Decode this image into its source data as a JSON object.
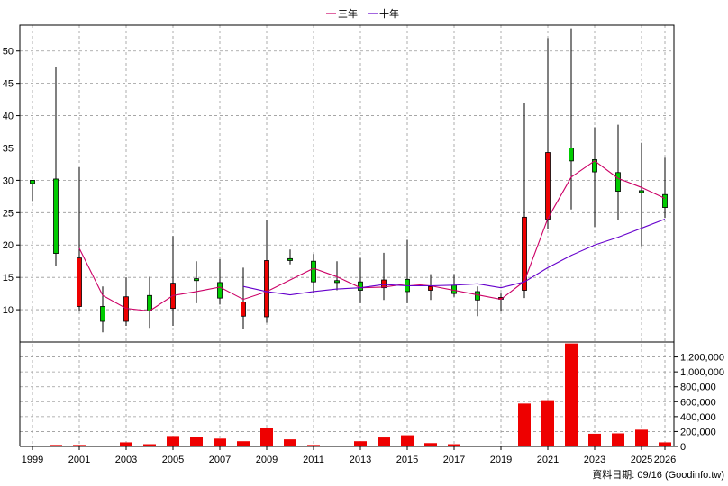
{
  "source_label": "資料日期: 09/16 (Goodinfo.tw)",
  "chart_data": {
    "type": "candlestick+bar",
    "legend": {
      "placement": "top-center",
      "entries": [
        {
          "name": "三年",
          "color": "#cc0066"
        },
        {
          "name": "十年",
          "color": "#6600cc"
        }
      ]
    },
    "x_ticks": [
      "1999",
      "2001",
      "2003",
      "2005",
      "2007",
      "2009",
      "2011",
      "2013",
      "2015",
      "2017",
      "2019",
      "2021",
      "2023",
      "2025",
      "2026"
    ],
    "x_range": [
      1999,
      2026.5
    ],
    "price_axis": {
      "ticks": [
        10,
        15,
        20,
        25,
        30,
        35,
        40,
        45,
        50
      ],
      "range": [
        5,
        54
      ],
      "grid": true
    },
    "volume_axis": {
      "ticks": [
        0,
        200000,
        400000,
        600000,
        800000,
        1000000,
        1200000
      ],
      "tick_labels": [
        "0",
        "200,000",
        "400,000",
        "600,000",
        "800,000",
        "1,000,000",
        "1,200,000"
      ],
      "range": [
        0,
        1400000
      ],
      "grid": true
    },
    "up_color": "#00cc00",
    "down_color": "#ee0000",
    "candles": [
      {
        "year": 1999,
        "open": 29.5,
        "close": 30.0,
        "high": 30.0,
        "low": 26.8
      },
      {
        "year": 2000,
        "open": 18.7,
        "close": 30.2,
        "high": 47.6,
        "low": 16.8
      },
      {
        "year": 2001,
        "open": 18.0,
        "close": 10.5,
        "high": 32.0,
        "low": 9.8
      },
      {
        "year": 2002,
        "open": 8.2,
        "close": 10.5,
        "high": 13.6,
        "low": 6.5
      },
      {
        "year": 2003,
        "open": 12.0,
        "close": 8.2,
        "high": 15.0,
        "low": 7.5
      },
      {
        "year": 2004,
        "open": 9.8,
        "close": 12.2,
        "high": 15.1,
        "low": 7.2
      },
      {
        "year": 2005,
        "open": 14.1,
        "close": 10.2,
        "high": 21.4,
        "low": 7.5
      },
      {
        "year": 2006,
        "open": 14.5,
        "close": 14.8,
        "high": 17.5,
        "low": 11.0
      },
      {
        "year": 2007,
        "open": 11.8,
        "close": 14.2,
        "high": 17.8,
        "low": 10.8
      },
      {
        "year": 2008,
        "open": 11.2,
        "close": 9.0,
        "high": 16.5,
        "low": 7.0
      },
      {
        "year": 2009,
        "open": 17.6,
        "close": 8.9,
        "high": 23.8,
        "low": 8.0
      },
      {
        "year": 2010,
        "open": 17.6,
        "close": 17.9,
        "high": 19.3,
        "low": 17.0
      },
      {
        "year": 2011,
        "open": 14.3,
        "close": 17.5,
        "high": 18.6,
        "low": 12.5
      },
      {
        "year": 2012,
        "open": 14.2,
        "close": 14.5,
        "high": 17.5,
        "low": 13.0
      },
      {
        "year": 2013,
        "open": 13.0,
        "close": 14.3,
        "high": 18.0,
        "low": 11.0
      },
      {
        "year": 2014,
        "open": 14.6,
        "close": 13.4,
        "high": 18.8,
        "low": 11.5
      },
      {
        "year": 2015,
        "open": 12.8,
        "close": 14.7,
        "high": 20.8,
        "low": 11.0
      },
      {
        "year": 2016,
        "open": 13.6,
        "close": 13.0,
        "high": 15.5,
        "low": 11.5
      },
      {
        "year": 2017,
        "open": 12.5,
        "close": 13.8,
        "high": 15.5,
        "low": 12.0
      },
      {
        "year": 2018,
        "open": 11.5,
        "close": 12.8,
        "high": 13.6,
        "low": 9.0
      },
      {
        "year": 2019,
        "open": 11.9,
        "close": 11.8,
        "high": 12.5,
        "low": 9.8
      },
      {
        "year": 2020,
        "open": 24.3,
        "close": 13.0,
        "high": 42.0,
        "low": 11.8
      },
      {
        "year": 2021,
        "open": 34.3,
        "close": 24.0,
        "high": 52.0,
        "low": 22.5
      },
      {
        "year": 2022,
        "open": 33.0,
        "close": 35.0,
        "high": 53.5,
        "low": 25.5
      },
      {
        "year": 2023,
        "open": 31.3,
        "close": 33.2,
        "high": 38.2,
        "low": 22.8
      },
      {
        "year": 2024,
        "open": 28.3,
        "close": 31.2,
        "high": 38.6,
        "low": 23.8
      },
      {
        "year": 2025,
        "open": 28.1,
        "close": 28.4,
        "high": 35.8,
        "low": 19.8
      },
      {
        "year": 2026,
        "open": 25.8,
        "close": 27.8,
        "high": 33.5,
        "low": 24.2
      }
    ],
    "series": [
      {
        "name": "三年",
        "x": [
          2001,
          2002,
          2003,
          2004,
          2005,
          2006,
          2007,
          2008,
          2009,
          2010,
          2011,
          2012,
          2013,
          2014,
          2015,
          2016,
          2017,
          2018,
          2019,
          2020,
          2021,
          2022,
          2023,
          2024,
          2025,
          2026
        ],
        "values": [
          19.5,
          12.2,
          10.2,
          9.8,
          12.2,
          12.8,
          13.5,
          11.6,
          12.8,
          14.6,
          16.4,
          15.1,
          13.4,
          13.5,
          14.0,
          13.7,
          13.0,
          12.3,
          11.6,
          14.4,
          24.1,
          30.5,
          33.0,
          30.3,
          28.9,
          27.2
        ]
      },
      {
        "name": "十年",
        "x": [
          2008,
          2009,
          2010,
          2011,
          2012,
          2013,
          2014,
          2015,
          2016,
          2017,
          2018,
          2019,
          2020,
          2021,
          2022,
          2023,
          2024,
          2025,
          2026
        ],
        "values": [
          13.6,
          12.8,
          12.3,
          12.8,
          13.2,
          13.4,
          13.9,
          13.7,
          13.7,
          13.8,
          14.0,
          13.4,
          14.3,
          16.5,
          18.4,
          20.0,
          21.2,
          22.6,
          24.0
        ]
      }
    ],
    "volume": [
      {
        "year": 1999,
        "value": 0
      },
      {
        "year": 2000,
        "value": 20000
      },
      {
        "year": 2001,
        "value": 20000
      },
      {
        "year": 2002,
        "value": 5000
      },
      {
        "year": 2003,
        "value": 55000
      },
      {
        "year": 2004,
        "value": 30000
      },
      {
        "year": 2005,
        "value": 140000
      },
      {
        "year": 2006,
        "value": 130000
      },
      {
        "year": 2007,
        "value": 105000
      },
      {
        "year": 2008,
        "value": 70000
      },
      {
        "year": 2009,
        "value": 250000
      },
      {
        "year": 2010,
        "value": 95000
      },
      {
        "year": 2011,
        "value": 20000
      },
      {
        "year": 2012,
        "value": 10000
      },
      {
        "year": 2013,
        "value": 70000
      },
      {
        "year": 2014,
        "value": 120000
      },
      {
        "year": 2015,
        "value": 150000
      },
      {
        "year": 2016,
        "value": 45000
      },
      {
        "year": 2017,
        "value": 30000
      },
      {
        "year": 2018,
        "value": 10000
      },
      {
        "year": 2019,
        "value": 5000
      },
      {
        "year": 2020,
        "value": 575000
      },
      {
        "year": 2021,
        "value": 620000
      },
      {
        "year": 2022,
        "value": 1380000
      },
      {
        "year": 2023,
        "value": 170000
      },
      {
        "year": 2024,
        "value": 175000
      },
      {
        "year": 2025,
        "value": 225000
      },
      {
        "year": 2026,
        "value": 55000
      }
    ]
  }
}
